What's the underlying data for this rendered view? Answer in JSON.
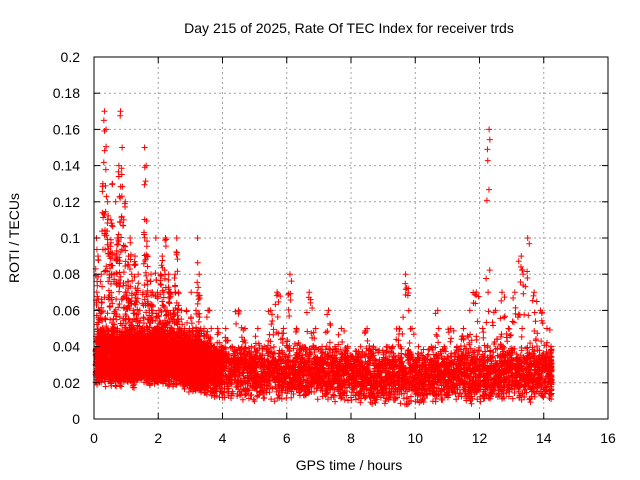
{
  "chart_data": {
    "type": "scatter",
    "title": "Day 215 of 2025, Rate Of TEC Index for receiver trds",
    "xlabel": "GPS time / hours",
    "ylabel": "ROTI / TECUs",
    "xlim": [
      0,
      16
    ],
    "ylim": [
      0,
      0.2
    ],
    "xticks": [
      0,
      2,
      4,
      6,
      8,
      10,
      12,
      14,
      16
    ],
    "yticks": [
      0,
      0.02,
      0.04,
      0.06,
      0.08,
      0.1,
      0.12,
      0.14,
      0.16,
      0.18,
      0.2
    ],
    "xtick_labels": [
      "0",
      "2",
      "4",
      "6",
      "8",
      "10",
      "12",
      "14",
      "16"
    ],
    "ytick_labels": [
      "0",
      "0.02",
      "0.04",
      "0.06",
      "0.08",
      "0.1",
      "0.12",
      "0.14",
      "0.16",
      "0.18",
      "0.2"
    ],
    "grid": true,
    "marker": "plus",
    "color": "#ff0000",
    "series": [
      {
        "x": [
          0.05,
          0.1,
          0.15,
          0.2,
          0.25,
          0.3,
          0.35,
          0.4,
          0.45,
          0.5,
          0.55,
          0.6,
          0.65,
          0.7,
          0.75,
          0.8,
          0.85,
          0.9,
          0.95,
          1.0,
          1.05,
          1.1,
          1.15,
          1.2,
          1.25,
          1.3,
          1.35,
          1.4,
          1.45,
          1.5,
          1.55,
          1.6,
          1.65,
          1.7,
          1.75,
          1.8,
          1.85,
          1.9,
          1.95,
          2.0,
          2.05,
          2.1,
          2.15,
          2.2,
          2.25,
          2.3,
          2.35,
          2.4,
          2.45,
          2.5,
          2.55,
          2.6,
          2.65,
          2.7,
          2.75,
          2.8,
          2.85,
          2.9,
          2.95,
          3.0,
          3.05,
          3.1,
          3.15,
          3.2,
          3.25,
          3.3,
          3.35,
          3.4,
          3.45,
          3.5,
          3.6,
          3.7,
          3.8,
          3.9,
          4.0,
          4.2,
          4.4,
          4.6,
          4.8,
          5.0,
          5.2,
          5.4,
          5.6,
          5.8,
          6.0,
          6.2,
          6.4,
          6.6,
          6.8,
          7.0,
          7.2,
          7.4,
          7.6,
          7.8,
          8.0,
          8.2,
          8.4,
          8.6,
          8.8,
          9.0,
          9.2,
          9.4,
          9.6,
          9.8,
          10.0,
          10.2,
          10.4,
          10.6,
          10.8,
          11.0,
          11.2,
          11.4,
          11.6,
          11.8,
          12.0,
          12.2,
          12.4,
          12.6,
          12.8,
          13.0,
          13.2,
          13.4,
          13.6,
          13.8,
          14.0,
          14.2
        ],
        "y": [
          0.1,
          0.09,
          0.06,
          0.08,
          0.13,
          0.17,
          0.16,
          0.12,
          0.09,
          0.11,
          0.13,
          0.08,
          0.12,
          0.1,
          0.14,
          0.17,
          0.15,
          0.11,
          0.12,
          0.07,
          0.09,
          0.1,
          0.08,
          0.06,
          0.09,
          0.07,
          0.08,
          0.06,
          0.05,
          0.07,
          0.15,
          0.14,
          0.09,
          0.06,
          0.08,
          0.07,
          0.05,
          0.1,
          0.07,
          0.06,
          0.08,
          0.09,
          0.07,
          0.1,
          0.06,
          0.08,
          0.07,
          0.05,
          0.06,
          0.08,
          0.1,
          0.07,
          0.05,
          0.06,
          0.04,
          0.05,
          0.06,
          0.04,
          0.05,
          0.07,
          0.05,
          0.04,
          0.06,
          0.1,
          0.08,
          0.05,
          0.04,
          0.05,
          0.03,
          0.06,
          0.05,
          0.04,
          0.05,
          0.04,
          0.05,
          0.04,
          0.06,
          0.05,
          0.04,
          0.05,
          0.04,
          0.06,
          0.07,
          0.05,
          0.08,
          0.05,
          0.04,
          0.07,
          0.05,
          0.04,
          0.06,
          0.04,
          0.05,
          0.04,
          0.03,
          0.04,
          0.05,
          0.04,
          0.03,
          0.04,
          0.04,
          0.05,
          0.08,
          0.05,
          0.04,
          0.03,
          0.04,
          0.06,
          0.04,
          0.05,
          0.04,
          0.05,
          0.06,
          0.07,
          0.05,
          0.16,
          0.06,
          0.07,
          0.05,
          0.07,
          0.09,
          0.1,
          0.07,
          0.06,
          0.05,
          0.04
        ],
        "baseline": [
          0.025,
          0.03,
          0.028,
          0.03,
          0.032,
          0.03,
          0.028,
          0.03,
          0.03,
          0.028,
          0.03,
          0.03,
          0.028,
          0.03,
          0.03,
          0.028,
          0.03,
          0.028,
          0.03,
          0.03,
          0.028,
          0.03,
          0.03,
          0.028,
          0.03,
          0.028,
          0.03,
          0.03,
          0.028,
          0.03,
          0.03,
          0.028,
          0.03,
          0.028,
          0.03,
          0.03,
          0.028,
          0.03,
          0.028,
          0.03,
          0.03,
          0.028,
          0.03,
          0.028,
          0.03,
          0.028,
          0.03,
          0.03,
          0.028,
          0.03,
          0.028,
          0.03,
          0.028,
          0.03,
          0.028,
          0.026,
          0.028,
          0.026,
          0.025,
          0.026,
          0.025,
          0.024,
          0.025,
          0.026,
          0.025,
          0.024,
          0.025,
          0.024,
          0.023,
          0.022,
          0.022,
          0.021,
          0.022,
          0.021,
          0.02,
          0.021,
          0.02,
          0.021,
          0.02,
          0.021,
          0.02,
          0.021,
          0.02,
          0.021,
          0.02,
          0.02,
          0.021,
          0.02,
          0.021,
          0.02,
          0.019,
          0.02,
          0.019,
          0.02,
          0.019,
          0.018,
          0.019,
          0.018,
          0.019,
          0.018,
          0.018,
          0.019,
          0.018,
          0.019,
          0.018,
          0.018,
          0.019,
          0.018,
          0.019,
          0.018,
          0.019,
          0.02,
          0.019,
          0.02,
          0.019,
          0.02,
          0.02,
          0.021,
          0.02,
          0.021,
          0.02,
          0.02,
          0.021,
          0.02,
          0.02,
          0.02
        ]
      }
    ]
  }
}
